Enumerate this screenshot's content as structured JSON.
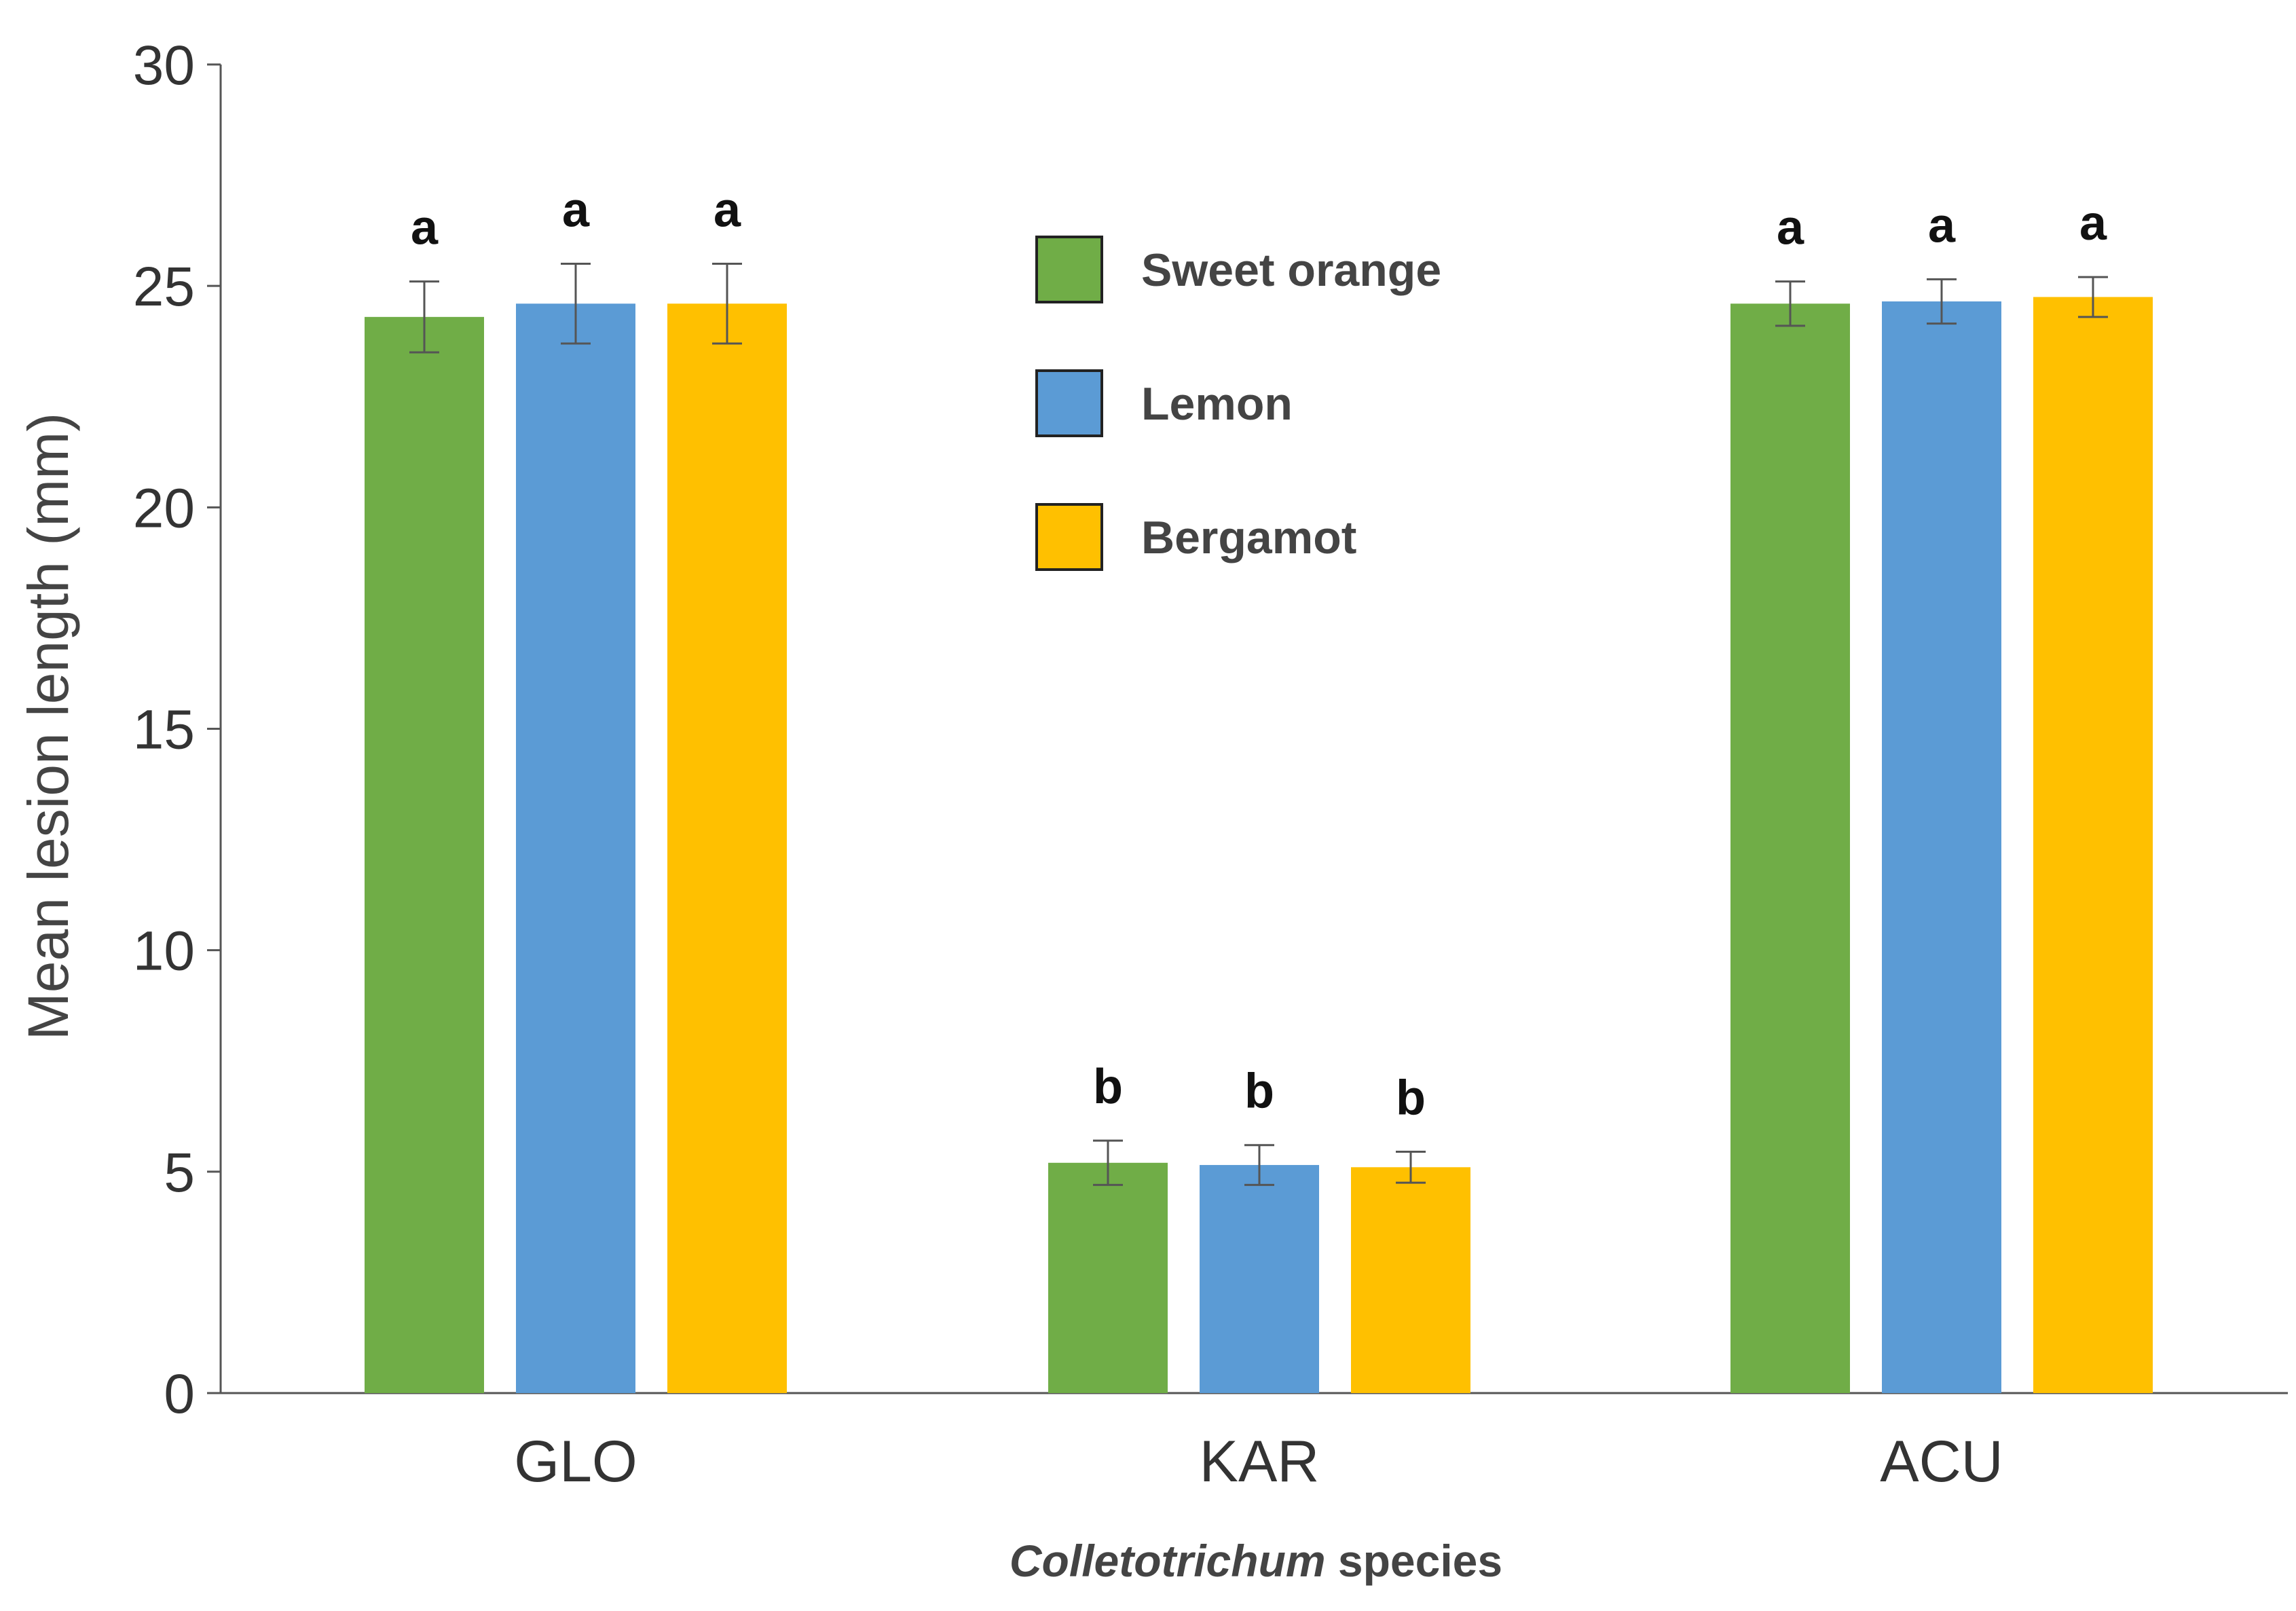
{
  "chart_data": {
    "type": "bar",
    "title": "",
    "xlabel": {
      "italic": "Colletotrichum",
      "rest": " species"
    },
    "ylabel": "Mean lesion length (mm)",
    "ylim": [
      0,
      30
    ],
    "yticks": [
      0,
      5,
      10,
      15,
      20,
      25,
      30
    ],
    "categories": [
      "GLO",
      "KAR",
      "ACU"
    ],
    "grid": false,
    "legend_position": "top-center",
    "series": [
      {
        "name": "Sweet orange",
        "color": "#70AD47",
        "values": [
          24.3,
          5.2,
          24.6
        ],
        "errors": [
          0.8,
          0.5,
          0.5
        ],
        "labels": [
          "a",
          "b",
          "a"
        ]
      },
      {
        "name": "Lemon",
        "color": "#5B9BD5",
        "values": [
          24.6,
          5.15,
          24.65
        ],
        "errors": [
          0.9,
          0.45,
          0.5
        ],
        "labels": [
          "a",
          "b",
          "a"
        ]
      },
      {
        "name": "Bergamot",
        "color": "#FFC000",
        "values": [
          24.6,
          5.1,
          24.75
        ],
        "errors": [
          0.9,
          0.35,
          0.45
        ],
        "labels": [
          "a",
          "b",
          "a"
        ]
      }
    ]
  }
}
